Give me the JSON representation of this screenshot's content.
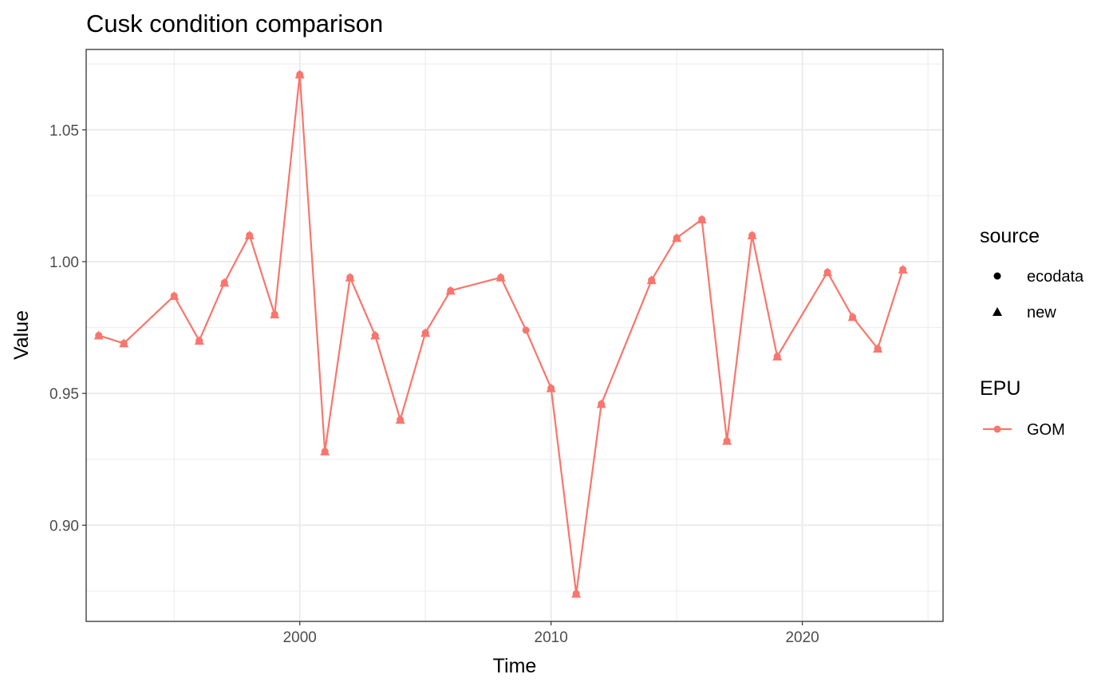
{
  "chart_data": {
    "type": "line",
    "title": "Cusk condition comparison",
    "xlabel": "Time",
    "ylabel": "Value",
    "xlim": [
      1991.5,
      2025.6
    ],
    "ylim": [
      0.8635,
      1.0805
    ],
    "x_ticks": [
      2000,
      2010,
      2020
    ],
    "x_tick_labels": [
      "2000",
      "2010",
      "2020"
    ],
    "x_minor_ticks": [
      1995,
      2005,
      2015,
      2025
    ],
    "y_ticks": [
      0.9,
      0.95,
      1.0,
      1.05
    ],
    "y_tick_labels": [
      "0.90",
      "0.95",
      "1.00",
      "1.05"
    ],
    "y_minor_ticks": [
      0.875,
      0.925,
      0.975,
      1.025,
      1.075
    ],
    "grid": true,
    "legend_placement": "right",
    "series_color": "#F8766D",
    "legends": {
      "source": {
        "title": "source",
        "items": [
          {
            "label": "ecodata",
            "shape": "circle"
          },
          {
            "label": "new",
            "shape": "triangle"
          }
        ]
      },
      "epu": {
        "title": "EPU",
        "items": [
          {
            "label": "GOM",
            "color": "#F8766D"
          }
        ]
      }
    },
    "series": [
      {
        "name": "GOM",
        "x": [
          1992,
          1993,
          1995,
          1996,
          1997,
          1998,
          1999,
          2000,
          2001,
          2002,
          2003,
          2004,
          2005,
          2006,
          2008,
          2009,
          2010,
          2011,
          2012,
          2014,
          2015,
          2016,
          2017,
          2018,
          2019,
          2021,
          2022,
          2023,
          2024
        ],
        "y": [
          0.972,
          0.969,
          0.987,
          0.97,
          0.992,
          1.01,
          0.98,
          1.071,
          0.928,
          0.994,
          0.972,
          0.94,
          0.973,
          0.989,
          0.994,
          0.974,
          0.952,
          0.874,
          0.946,
          0.993,
          1.009,
          1.016,
          0.932,
          1.01,
          0.964,
          0.996,
          0.979,
          0.967,
          0.997
        ],
        "new_x": [
          1992,
          1993,
          1995,
          1996,
          1997,
          1998,
          1999,
          2000,
          2001,
          2002,
          2003,
          2004,
          2005,
          2006,
          2008,
          2010,
          2011,
          2012,
          2014,
          2015,
          2016,
          2017,
          2018,
          2019,
          2021,
          2022,
          2023,
          2024
        ]
      }
    ]
  }
}
